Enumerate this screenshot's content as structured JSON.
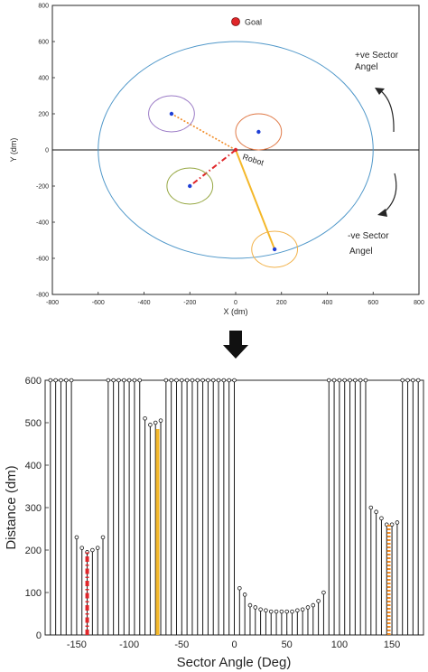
{
  "chart_data": [
    {
      "type": "scatter",
      "xlabel": "X (dm)",
      "ylabel": "Y (dm)",
      "xlim": [
        -800,
        800
      ],
      "ylim": [
        -800,
        800
      ],
      "xticks": [
        -800,
        -600,
        -400,
        -200,
        0,
        200,
        400,
        600,
        800
      ],
      "yticks": [
        -800,
        -600,
        -400,
        -200,
        0,
        200,
        400,
        600,
        800
      ],
      "grid": false,
      "sensor_range": {
        "center": [
          0,
          0
        ],
        "radius": 600,
        "color": "#4f97c9"
      },
      "goal": {
        "label": "Goal",
        "x": 0,
        "y": 710,
        "color": "#e0262a"
      },
      "robot": {
        "label": "Robot",
        "x": 0,
        "y": 0,
        "color": "#e0262a"
      },
      "obstacles": [
        {
          "x": -280,
          "y": 200,
          "radius": 100,
          "circle_color": "#9b7bc6",
          "link_color": "#f08a24",
          "link_style": "dotted"
        },
        {
          "x": 100,
          "y": 100,
          "radius": 100,
          "circle_color": "#e07a48",
          "link_color": "#f08a24",
          "link_style": "none"
        },
        {
          "x": -200,
          "y": -200,
          "radius": 100,
          "circle_color": "#97a844",
          "link_color": "#e0262a",
          "link_style": "dashdot"
        },
        {
          "x": 170,
          "y": -550,
          "radius": 100,
          "circle_color": "#f2b24a",
          "link_color": "#f4b82a",
          "link_style": "solid"
        }
      ],
      "annotations": {
        "positive_angle": [
          "+ve Sector",
          "Angel"
        ],
        "negative_angle": [
          "-ve Sector",
          "Angel"
        ]
      }
    },
    {
      "type": "bar",
      "xlabel": "Sector Angle (Deg)",
      "ylabel": "Distance (dm)",
      "xlim": [
        -180,
        180
      ],
      "ylim": [
        0,
        600
      ],
      "xticks": [
        -150,
        -100,
        -50,
        0,
        50,
        100,
        150
      ],
      "yticks": [
        0,
        100,
        200,
        300,
        400,
        500,
        600
      ],
      "stems": [
        {
          "x": -175,
          "y": 600
        },
        {
          "x": -170,
          "y": 600
        },
        {
          "x": -165,
          "y": 600
        },
        {
          "x": -160,
          "y": 600
        },
        {
          "x": -155,
          "y": 600
        },
        {
          "x": -150,
          "y": 230
        },
        {
          "x": -145,
          "y": 205
        },
        {
          "x": -140,
          "y": 195
        },
        {
          "x": -135,
          "y": 200
        },
        {
          "x": -130,
          "y": 205
        },
        {
          "x": -125,
          "y": 230
        },
        {
          "x": -120,
          "y": 600
        },
        {
          "x": -115,
          "y": 600
        },
        {
          "x": -110,
          "y": 600
        },
        {
          "x": -105,
          "y": 600
        },
        {
          "x": -100,
          "y": 600
        },
        {
          "x": -95,
          "y": 600
        },
        {
          "x": -90,
          "y": 600
        },
        {
          "x": -85,
          "y": 510
        },
        {
          "x": -80,
          "y": 495
        },
        {
          "x": -75,
          "y": 500
        },
        {
          "x": -70,
          "y": 505
        },
        {
          "x": -65,
          "y": 600
        },
        {
          "x": -60,
          "y": 600
        },
        {
          "x": -55,
          "y": 600
        },
        {
          "x": -50,
          "y": 600
        },
        {
          "x": -45,
          "y": 600
        },
        {
          "x": -40,
          "y": 600
        },
        {
          "x": -35,
          "y": 600
        },
        {
          "x": -30,
          "y": 600
        },
        {
          "x": -25,
          "y": 600
        },
        {
          "x": -20,
          "y": 600
        },
        {
          "x": -15,
          "y": 600
        },
        {
          "x": -10,
          "y": 600
        },
        {
          "x": -5,
          "y": 600
        },
        {
          "x": 0,
          "y": 600
        },
        {
          "x": 5,
          "y": 110
        },
        {
          "x": 10,
          "y": 95
        },
        {
          "x": 15,
          "y": 70
        },
        {
          "x": 20,
          "y": 65
        },
        {
          "x": 25,
          "y": 60
        },
        {
          "x": 30,
          "y": 58
        },
        {
          "x": 35,
          "y": 55
        },
        {
          "x": 40,
          "y": 55
        },
        {
          "x": 45,
          "y": 55
        },
        {
          "x": 50,
          "y": 55
        },
        {
          "x": 55,
          "y": 55
        },
        {
          "x": 60,
          "y": 58
        },
        {
          "x": 65,
          "y": 60
        },
        {
          "x": 70,
          "y": 65
        },
        {
          "x": 75,
          "y": 70
        },
        {
          "x": 80,
          "y": 80
        },
        {
          "x": 85,
          "y": 100
        },
        {
          "x": 90,
          "y": 600
        },
        {
          "x": 95,
          "y": 600
        },
        {
          "x": 100,
          "y": 600
        },
        {
          "x": 105,
          "y": 600
        },
        {
          "x": 110,
          "y": 600
        },
        {
          "x": 115,
          "y": 600
        },
        {
          "x": 120,
          "y": 600
        },
        {
          "x": 125,
          "y": 600
        },
        {
          "x": 130,
          "y": 300
        },
        {
          "x": 135,
          "y": 290
        },
        {
          "x": 140,
          "y": 275
        },
        {
          "x": 145,
          "y": 260
        },
        {
          "x": 150,
          "y": 260
        },
        {
          "x": 155,
          "y": 265
        },
        {
          "x": 160,
          "y": 600
        },
        {
          "x": 165,
          "y": 600
        },
        {
          "x": 170,
          "y": 600
        },
        {
          "x": 175,
          "y": 600
        }
      ],
      "highlights": [
        {
          "x": -140,
          "y": 195,
          "color": "#e0262a",
          "style": "dashdot"
        },
        {
          "x": -73,
          "y": 485,
          "color": "#f4b82a",
          "style": "solid"
        },
        {
          "x": 147,
          "y": 260,
          "color": "#f08a24",
          "style": "dotted"
        }
      ]
    }
  ]
}
